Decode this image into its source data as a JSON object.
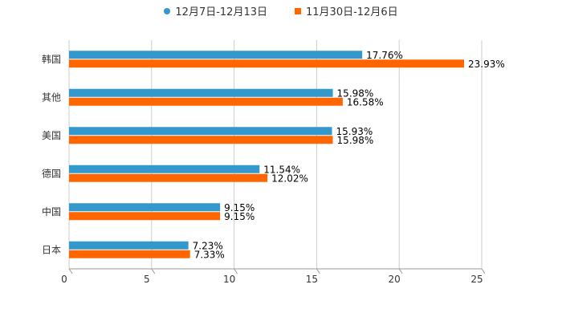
{
  "chart_data": {
    "type": "bar",
    "orientation": "horizontal",
    "title": "",
    "xlabel": "",
    "ylabel": "",
    "xlim": [
      0,
      25
    ],
    "xticks": [
      0,
      5,
      10,
      15,
      20,
      25
    ],
    "grid": true,
    "legend_position": "top-center",
    "categories": [
      "韩国",
      "其他",
      "美国",
      "德国",
      "中国",
      "日本"
    ],
    "series": [
      {
        "name": "12月7日-12月13日",
        "color": "#3399cc",
        "marker": "circle",
        "values": [
          17.76,
          15.98,
          15.93,
          11.54,
          9.15,
          7.23
        ],
        "labels": [
          "17.76%",
          "15.98%",
          "15.93%",
          "11.54%",
          "9.15%",
          "7.23%"
        ]
      },
      {
        "name": "11月30日-12月6日",
        "color": "#ff6600",
        "marker": "square",
        "values": [
          23.93,
          16.58,
          15.98,
          12.02,
          9.15,
          7.33
        ],
        "labels": [
          "23.93%",
          "16.58%",
          "15.98%",
          "12.02%",
          "9.15%",
          "7.33%"
        ]
      }
    ]
  }
}
